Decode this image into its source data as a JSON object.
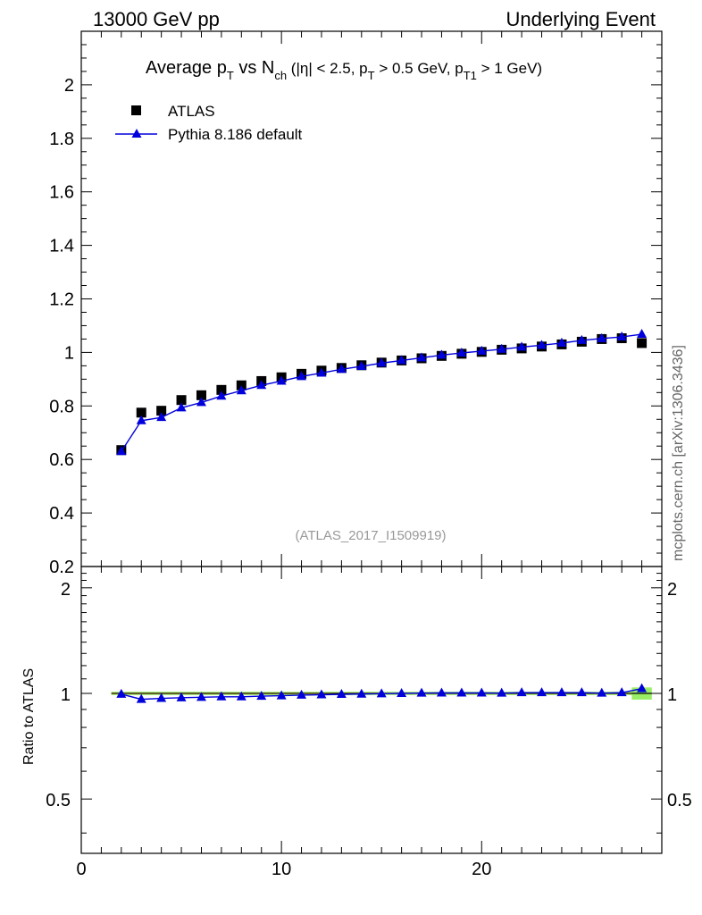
{
  "header": {
    "left": "13000 GeV pp",
    "right": "Underlying Event"
  },
  "title": {
    "parts": [
      "Average p",
      "T",
      " vs N",
      "ch",
      " (|η| < 2.5, p",
      "T",
      " > 0.5 GeV, p",
      "T1",
      " > 1 GeV)"
    ]
  },
  "annotation": "(ATLAS_2017_I1509919)",
  "side_label": "mcplots.cern.ch [arXiv:1306.3436]",
  "ratio_ylabel": "Ratio to ATLAS",
  "legend": {
    "data_label": "ATLAS",
    "mc_label": "Pythia 8.186 default"
  },
  "colors": {
    "mc": "#0000dd",
    "data": "#000000",
    "band_inner": "#ffff77",
    "band_outer": "#99ee66"
  },
  "chart_data": [
    {
      "type": "scatter",
      "xlim": [
        0,
        29
      ],
      "ylim": [
        0.2,
        2.2
      ],
      "x_ticks": [
        0,
        10,
        20
      ],
      "y_ticks": [
        0.2,
        0.4,
        0.6,
        0.8,
        1,
        1.2,
        1.4,
        1.6,
        1.8,
        2
      ],
      "y_tick_labels": [
        "0.2",
        "0.4",
        "0.6",
        "0.8",
        "1",
        "1.2",
        "1.4",
        "1.6",
        "1.8",
        "2"
      ],
      "legend_position": "top-left",
      "series": [
        {
          "name": "ATLAS",
          "marker": "square",
          "x": [
            2,
            3,
            4,
            5,
            6,
            7,
            8,
            9,
            10,
            11,
            12,
            13,
            14,
            15,
            16,
            17,
            18,
            19,
            20,
            21,
            22,
            23,
            24,
            25,
            26,
            27,
            28
          ],
          "y": [
            0.635,
            0.775,
            0.782,
            0.822,
            0.84,
            0.86,
            0.877,
            0.893,
            0.907,
            0.92,
            0.932,
            0.942,
            0.952,
            0.962,
            0.97,
            0.978,
            0.987,
            0.995,
            1.002,
            1.01,
            1.015,
            1.022,
            1.03,
            1.04,
            1.05,
            1.053,
            1.035
          ]
        },
        {
          "name": "Pythia 8.186 default",
          "marker": "triangle",
          "x": [
            2,
            3,
            4,
            5,
            6,
            7,
            8,
            9,
            10,
            11,
            12,
            13,
            14,
            15,
            16,
            17,
            18,
            19,
            20,
            21,
            22,
            23,
            24,
            25,
            26,
            27,
            28
          ],
          "y": [
            0.63,
            0.745,
            0.757,
            0.793,
            0.813,
            0.837,
            0.857,
            0.877,
            0.893,
            0.91,
            0.923,
            0.937,
            0.948,
            0.96,
            0.97,
            0.98,
            0.99,
            0.998,
            1.005,
            1.012,
            1.02,
            1.027,
            1.035,
            1.045,
            1.052,
            1.058,
            1.068
          ]
        }
      ]
    },
    {
      "type": "line",
      "xlim": [
        0,
        29
      ],
      "ylim": [
        0.35,
        2.3
      ],
      "x_ticks": [
        0,
        10,
        20
      ],
      "x_tick_labels": [
        "0",
        "10",
        "20"
      ],
      "y_ticks": [
        0.5,
        1,
        2
      ],
      "y_tick_labels": [
        "0.5",
        "1",
        "2"
      ],
      "ylabel": "Ratio to ATLAS",
      "series": [
        {
          "name": "Pythia 8.186 default",
          "marker": "triangle",
          "x": [
            2,
            3,
            4,
            5,
            6,
            7,
            8,
            9,
            10,
            11,
            12,
            13,
            14,
            15,
            16,
            17,
            18,
            19,
            20,
            21,
            22,
            23,
            24,
            25,
            26,
            27,
            28
          ],
          "y": [
            0.995,
            0.962,
            0.968,
            0.972,
            0.975,
            0.978,
            0.978,
            0.982,
            0.985,
            0.989,
            0.991,
            0.994,
            0.996,
            0.998,
            1.0,
            1.002,
            1.003,
            1.003,
            1.003,
            1.002,
            1.005,
            1.005,
            1.005,
            1.005,
            1.002,
            1.005,
            1.032
          ]
        }
      ],
      "reference_band": {
        "x": [
          1.5,
          28.5
        ],
        "half_width_inner": 0.006,
        "half_width_outer_last": 0.04
      }
    }
  ]
}
